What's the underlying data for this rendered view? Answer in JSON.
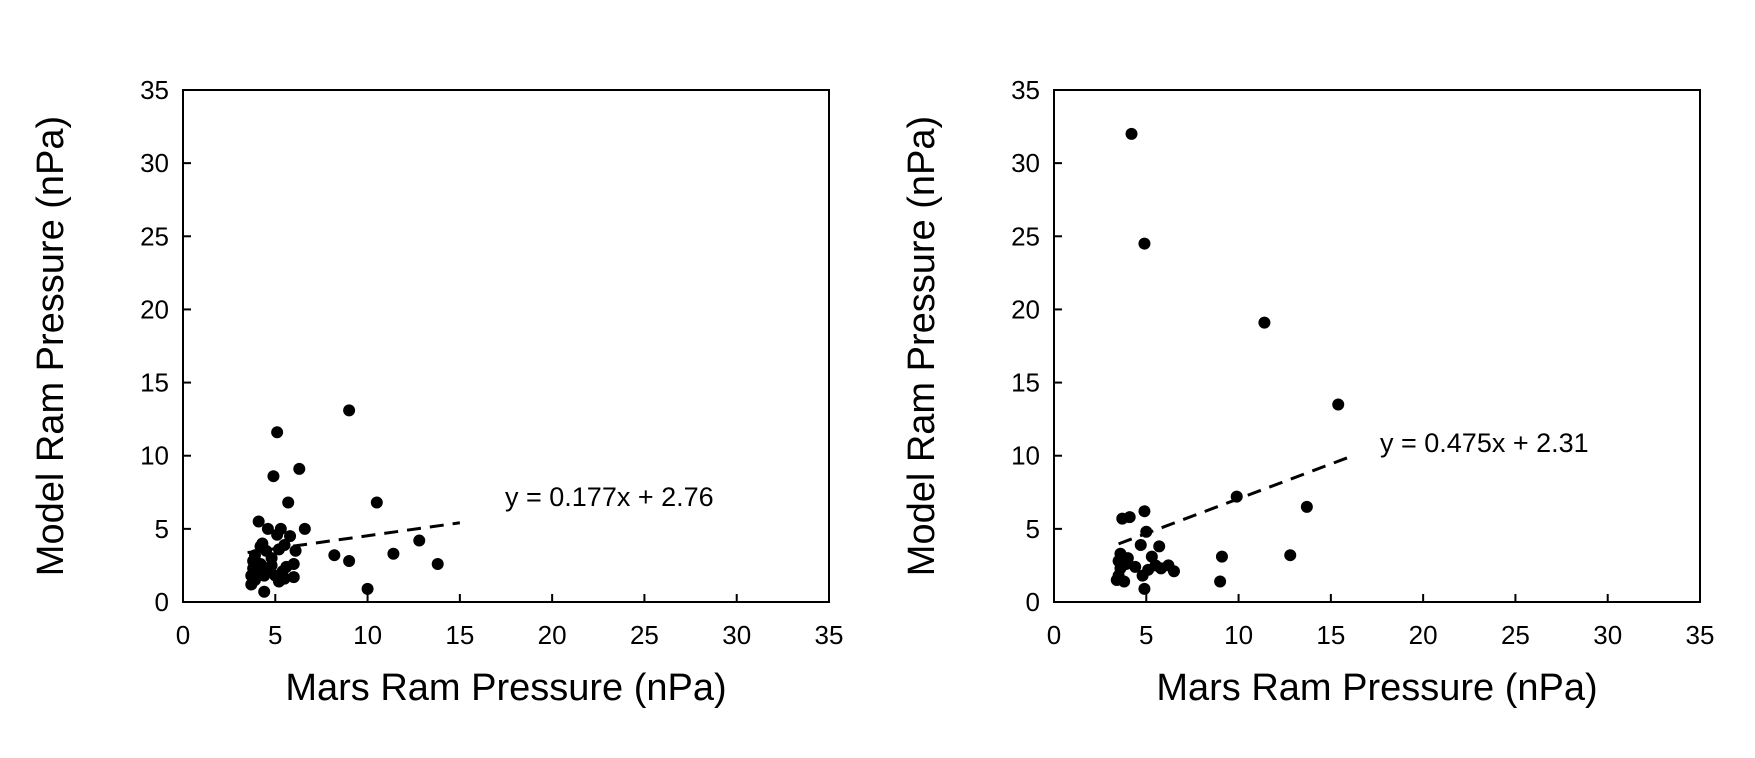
{
  "chart_data": [
    {
      "type": "scatter",
      "title": "",
      "xlabel": "Mars Ram Pressure (nPa)",
      "ylabel": "Model Ram Pressure (nPa)",
      "xlim": [
        0,
        35
      ],
      "ylim": [
        0,
        35
      ],
      "xticks": [
        "0",
        "5",
        "10",
        "15",
        "20",
        "25",
        "30",
        "35"
      ],
      "yticks": [
        "0",
        "5",
        "10",
        "15",
        "20",
        "25",
        "30",
        "35"
      ],
      "grid": false,
      "trendline": {
        "slope": 0.177,
        "intercept": 2.76,
        "x_range": [
          3.5,
          15
        ],
        "style": "dashed",
        "equation": "y = 0.177x + 2.76"
      },
      "points": [
        [
          3.7,
          1.2
        ],
        [
          3.7,
          1.8
        ],
        [
          3.8,
          2.3
        ],
        [
          3.8,
          2.8
        ],
        [
          3.9,
          1.5
        ],
        [
          3.9,
          3.2
        ],
        [
          4.0,
          2.0
        ],
        [
          4.1,
          5.5
        ],
        [
          4.2,
          3.8
        ],
        [
          4.2,
          2.6
        ],
        [
          4.3,
          4.0
        ],
        [
          4.4,
          0.7
        ],
        [
          4.4,
          1.8
        ],
        [
          4.5,
          3.5
        ],
        [
          4.5,
          2.2
        ],
        [
          4.6,
          5.0
        ],
        [
          4.8,
          3.0
        ],
        [
          4.8,
          2.5
        ],
        [
          4.9,
          8.6
        ],
        [
          5.0,
          1.8
        ],
        [
          5.1,
          11.6
        ],
        [
          5.1,
          4.6
        ],
        [
          5.2,
          1.4
        ],
        [
          5.2,
          3.6
        ],
        [
          5.3,
          5.0
        ],
        [
          5.4,
          2.1
        ],
        [
          5.5,
          1.6
        ],
        [
          5.5,
          3.9
        ],
        [
          5.6,
          2.4
        ],
        [
          5.7,
          6.8
        ],
        [
          5.8,
          4.5
        ],
        [
          6.0,
          1.7
        ],
        [
          6.0,
          2.6
        ],
        [
          6.1,
          3.5
        ],
        [
          6.3,
          9.1
        ],
        [
          6.6,
          5.0
        ],
        [
          8.2,
          3.2
        ],
        [
          9.0,
          13.1
        ],
        [
          9.0,
          2.8
        ],
        [
          10.0,
          0.9
        ],
        [
          10.5,
          6.8
        ],
        [
          11.4,
          3.3
        ],
        [
          12.8,
          4.2
        ],
        [
          13.8,
          2.6
        ]
      ]
    },
    {
      "type": "scatter",
      "title": "",
      "xlabel": "Mars Ram Pressure (nPa)",
      "ylabel": "Model Ram Pressure (nPa)",
      "xlim": [
        0,
        35
      ],
      "ylim": [
        0,
        35
      ],
      "xticks": [
        "0",
        "5",
        "10",
        "15",
        "20",
        "25",
        "30",
        "35"
      ],
      "yticks": [
        "0",
        "5",
        "10",
        "15",
        "20",
        "25",
        "30",
        "35"
      ],
      "grid": false,
      "trendline": {
        "slope": 0.475,
        "intercept": 2.31,
        "x_range": [
          3.5,
          16
        ],
        "style": "dashed",
        "equation": "y = 0.475x + 2.31"
      },
      "points": [
        [
          3.4,
          1.5
        ],
        [
          3.5,
          2.8
        ],
        [
          3.5,
          1.8
        ],
        [
          3.6,
          3.3
        ],
        [
          3.6,
          2.3
        ],
        [
          3.7,
          5.7
        ],
        [
          3.8,
          1.4
        ],
        [
          3.9,
          2.6
        ],
        [
          4.0,
          3.0
        ],
        [
          4.1,
          5.8
        ],
        [
          4.2,
          32.0
        ],
        [
          4.4,
          2.4
        ],
        [
          4.7,
          3.9
        ],
        [
          4.8,
          1.8
        ],
        [
          4.9,
          6.2
        ],
        [
          4.9,
          0.9
        ],
        [
          4.9,
          24.5
        ],
        [
          5.0,
          4.8
        ],
        [
          5.1,
          2.2
        ],
        [
          5.3,
          3.1
        ],
        [
          5.5,
          2.5
        ],
        [
          5.7,
          3.8
        ],
        [
          5.8,
          2.3
        ],
        [
          6.2,
          2.5
        ],
        [
          6.5,
          2.1
        ],
        [
          9.0,
          1.4
        ],
        [
          9.1,
          3.1
        ],
        [
          9.9,
          7.2
        ],
        [
          11.4,
          19.1
        ],
        [
          12.8,
          3.2
        ],
        [
          13.7,
          6.5
        ],
        [
          15.4,
          13.5
        ]
      ]
    }
  ]
}
